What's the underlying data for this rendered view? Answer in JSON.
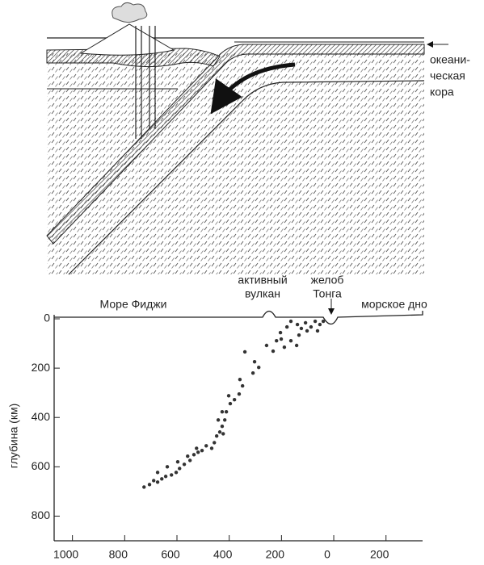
{
  "diagram": {
    "label": [
      "океани-",
      "ческая",
      "кора"
    ]
  },
  "chart_data": {
    "type": "scatter",
    "ylabel": "глубина (км)",
    "annotations": [
      {
        "lines": [
          "Море Фиджи"
        ]
      },
      {
        "lines": [
          "активный",
          "вулкан"
        ]
      },
      {
        "lines": [
          "желоб",
          "Тонга"
        ]
      },
      {
        "lines": [
          "морское дно"
        ]
      }
    ],
    "xlim": [
      1070,
      -340
    ],
    "ylim": [
      0,
      900
    ],
    "xticks": [
      1000,
      800,
      600,
      400,
      200,
      0,
      {
        "value": -200,
        "label": "200"
      }
    ],
    "yticks": [
      0,
      200,
      400,
      600,
      800
    ],
    "color": "#333333",
    "x": [
      340,
      303,
      287,
      309,
      257,
      219,
      204,
      179,
      164,
      139,
      124,
      108,
      87,
      71,
      53,
      40,
      189,
      201,
      133,
      102,
      62,
      232,
      164,
      142,
      359,
      349,
      362,
      380,
      402,
      396,
      411,
      417,
      427,
      436,
      448,
      457,
      467,
      488,
      504,
      519,
      535,
      550,
      572,
      590,
      603,
      621,
      643,
      658,
      674,
      689,
      705,
      726,
      674,
      637,
      597,
      559,
      525,
      427,
      442,
      423
    ],
    "values": [
      134,
      174,
      197,
      220,
      108,
      89,
      56,
      33,
      10,
      23,
      39,
      16,
      33,
      10,
      23,
      10,
      115,
      82,
      66,
      49,
      49,
      131,
      89,
      108,
      246,
      272,
      305,
      328,
      312,
      344,
      377,
      410,
      436,
      459,
      475,
      502,
      525,
      515,
      534,
      541,
      551,
      574,
      590,
      607,
      623,
      633,
      639,
      649,
      662,
      656,
      672,
      682,
      623,
      600,
      580,
      557,
      525,
      377,
      410,
      466
    ]
  }
}
